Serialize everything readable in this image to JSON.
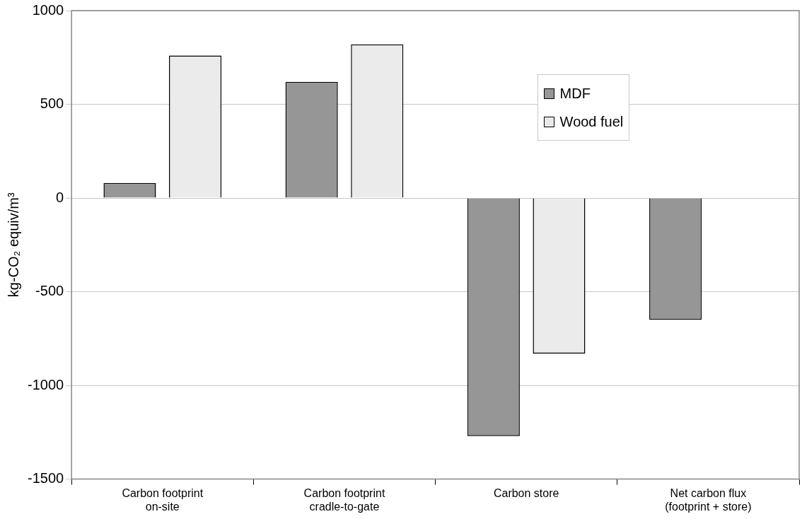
{
  "chart_data": {
    "type": "bar",
    "ylabel": "kg-CO₂ equiv/m³",
    "categories": [
      "Carbon footprint on-site",
      "Carbon footprint cradle-to-gate",
      "Carbon store",
      "Net carbon flux (footprint + store)"
    ],
    "series": [
      {
        "name": "MDF",
        "color": "#969696",
        "values": [
          80,
          620,
          -1270,
          -650
        ]
      },
      {
        "name": "Wood fuel",
        "color": "#ebebeb",
        "values": [
          760,
          820,
          -830,
          null
        ]
      }
    ],
    "ylim": [
      -1500,
      1000
    ],
    "yticks": [
      -1500,
      -1000,
      -500,
      0,
      500,
      1000
    ],
    "grid": "y",
    "legend": "top right"
  }
}
